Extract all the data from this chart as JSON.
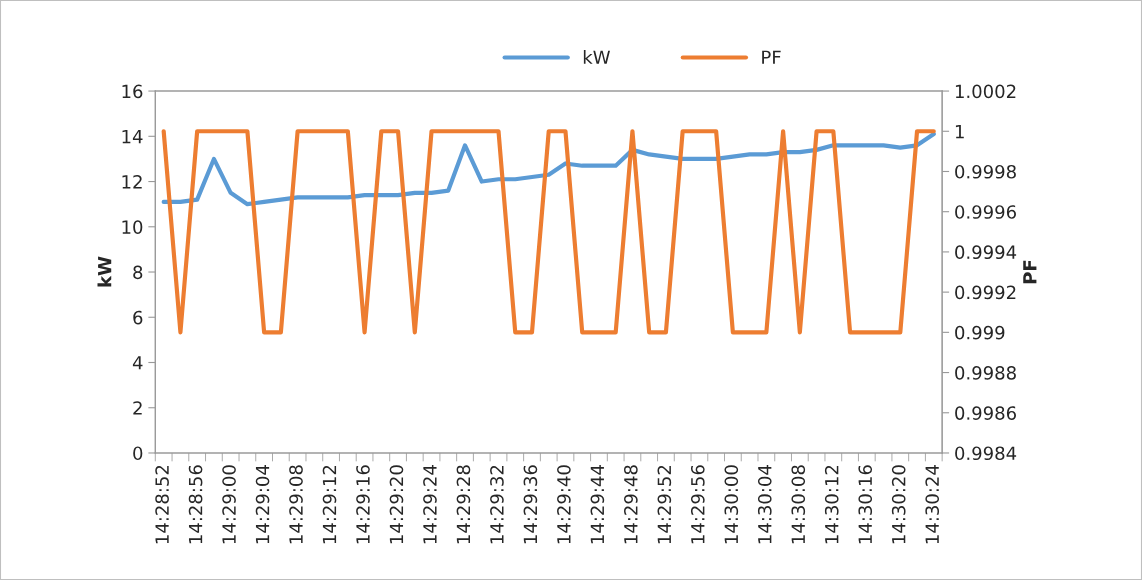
{
  "chart_data": {
    "type": "line",
    "categories": [
      "14:28:52",
      null,
      "14:28:56",
      null,
      "14:29:00",
      null,
      "14:29:04",
      null,
      "14:29:08",
      null,
      "14:29:12",
      null,
      "14:29:16",
      null,
      "14:29:20",
      null,
      "14:29:24",
      null,
      "14:29:28",
      null,
      "14:29:32",
      null,
      "14:29:36",
      null,
      "14:29:40",
      null,
      "14:29:44",
      null,
      "14:29:48",
      null,
      "14:29:52",
      null,
      "14:29:56",
      null,
      "14:30:00",
      null,
      "14:30:04",
      null,
      "14:30:08",
      null,
      "14:30:12",
      null,
      "14:30:16",
      null,
      "14:30:20",
      null,
      "14:30:24"
    ],
    "series": [
      {
        "name": "kW",
        "color": "#5b9bd5",
        "values": [
          11.1,
          11.1,
          11.2,
          13.0,
          11.5,
          11.0,
          11.1,
          11.2,
          11.3,
          11.3,
          11.3,
          11.3,
          11.4,
          11.4,
          11.4,
          11.5,
          11.5,
          11.6,
          13.6,
          12.0,
          12.1,
          12.1,
          12.2,
          12.3,
          12.8,
          12.7,
          12.7,
          12.7,
          13.4,
          13.2,
          13.1,
          13.0,
          13.0,
          13.0,
          13.1,
          13.2,
          13.2,
          13.3,
          13.3,
          13.4,
          13.6,
          13.6,
          13.6,
          13.6,
          13.5,
          13.6,
          14.1
        ]
      },
      {
        "name": "PF",
        "color": "#ed7d31",
        "axis": "y2",
        "values": [
          1,
          0.999,
          1,
          1,
          1,
          1,
          0.999,
          0.999,
          1,
          1,
          1,
          1,
          0.999,
          1,
          1,
          0.999,
          1,
          1,
          1,
          1,
          1,
          0.999,
          0.999,
          1,
          1,
          0.999,
          0.999,
          0.999,
          1,
          0.999,
          0.999,
          1,
          1,
          1,
          0.999,
          0.999,
          0.999,
          1,
          0.999,
          1,
          1,
          0.999,
          0.999,
          0.999,
          0.999,
          1,
          1
        ]
      }
    ],
    "ylabel": "kW",
    "y2label": "PF",
    "ylim": [
      0,
      16
    ],
    "yticks": [
      0,
      2,
      4,
      6,
      8,
      10,
      12,
      14,
      16
    ],
    "y2lim": [
      0.9984,
      1.0002
    ],
    "y2ticks": [
      0.9984,
      0.9986,
      0.9988,
      0.999,
      0.9992,
      0.9994,
      0.9996,
      0.9998,
      1,
      1.0002
    ],
    "legend": "top",
    "grid": false,
    "marker": "none",
    "line_style": "solid"
  }
}
